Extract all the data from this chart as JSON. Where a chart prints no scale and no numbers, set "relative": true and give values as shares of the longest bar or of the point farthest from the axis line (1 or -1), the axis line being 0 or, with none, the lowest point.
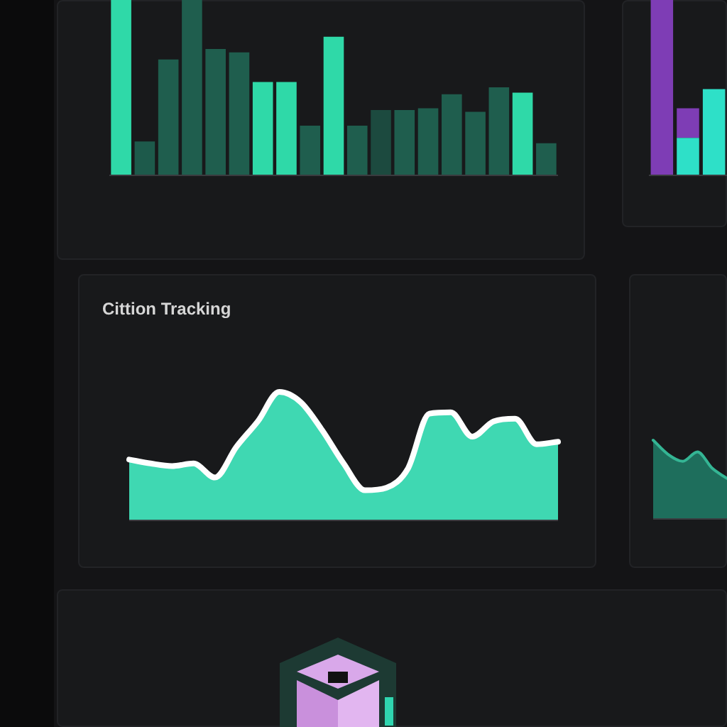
{
  "chart_data": [
    {
      "type": "bar",
      "relative": true,
      "categories": [
        null,
        null,
        null,
        null,
        null,
        null,
        null,
        null,
        null,
        null,
        null,
        null,
        null,
        null,
        null,
        null,
        null,
        null,
        null
      ],
      "values": [
        1,
        0.19,
        0.66,
        1,
        0.72,
        0.7,
        0.53,
        0.53,
        0.28,
        0.79,
        0.28,
        0.37,
        0.37,
        0.38,
        0.46,
        0.36,
        0.5,
        0.47,
        0.18
      ],
      "colors": [
        "#2fd9a8",
        "#1d5a4b",
        "#1f5e4e",
        "#1f5e4e",
        "#1f5e4e",
        "#1f5e4e",
        "#2fd9a8",
        "#2fd9a8",
        "#1f5e4e",
        "#2fd9a8",
        "#1f5e4e",
        "#1c4a3f",
        "#1f5e4e",
        "#1f5e4e",
        "#1f5e4e",
        "#1f5e4e",
        "#1f5e4e",
        "#2fd9a8",
        "#1f5e4e"
      ]
    },
    {
      "type": "area",
      "title": "Cittion Tracking",
      "relative": true,
      "categories": [
        null,
        null,
        null,
        null,
        null,
        null,
        null,
        null,
        null,
        null,
        null,
        null,
        null,
        null,
        null,
        null,
        null,
        null,
        null,
        null,
        null
      ],
      "values": [
        0.47,
        0.44,
        0.42,
        0.44,
        0.33,
        0.57,
        0.77,
        1,
        0.92,
        0.7,
        0.44,
        0.23,
        0.25,
        0.4,
        0.83,
        0.84,
        0.65,
        0.77,
        0.79,
        0.59,
        0.61
      ],
      "color": "#3fd8b2"
    },
    {
      "type": "bar",
      "relative": true,
      "stacked": true,
      "categories": [
        null,
        null,
        null
      ],
      "series": [
        {
          "color": "#2ee0c8",
          "values": [
            null,
            0.21,
            0.49
          ]
        },
        {
          "color": "#7e3db5",
          "values": [
            1,
            0.17,
            null
          ]
        }
      ]
    },
    {
      "type": "area",
      "relative": true,
      "categories": [
        null,
        null,
        null,
        null,
        null,
        null
      ],
      "values": [
        1,
        0.82,
        0.73,
        0.85,
        0.64,
        0.51
      ],
      "color": "#1e6e5c"
    }
  ]
}
